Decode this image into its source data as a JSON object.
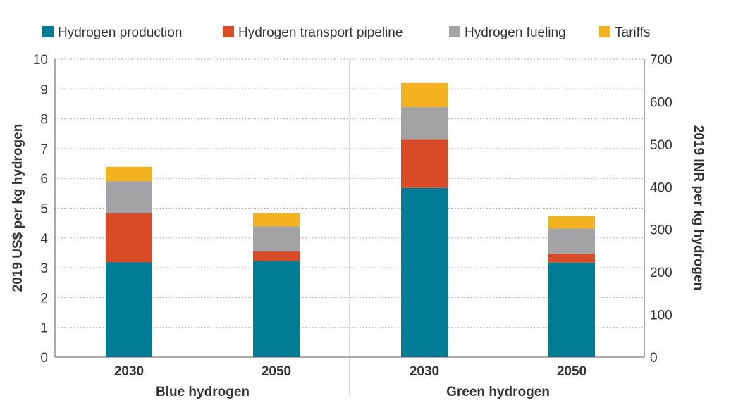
{
  "chart_data": {
    "type": "bar",
    "stacked": true,
    "groups": [
      {
        "label": "Blue hydrogen",
        "categories": [
          "2030",
          "2050"
        ]
      },
      {
        "label": "Green hydrogen",
        "categories": [
          "2030",
          "2050"
        ]
      }
    ],
    "series": [
      {
        "name": "Hydrogen production",
        "color": "#007d96",
        "values": [
          3.18,
          3.23,
          5.68,
          3.17
        ]
      },
      {
        "name": "Hydrogen transport pipeline",
        "color": "#d94b26",
        "values": [
          1.65,
          0.32,
          1.62,
          0.3
        ]
      },
      {
        "name": "Hydrogen fueling",
        "color": "#a3a3a5",
        "values": [
          1.07,
          0.84,
          1.09,
          0.85
        ]
      },
      {
        "name": "Tariffs",
        "color": "#f3b21f",
        "values": [
          0.49,
          0.44,
          0.81,
          0.42
        ]
      }
    ],
    "ylabel": "2019 US$ per kg hydrogen",
    "ylim": [
      0,
      10
    ],
    "yticks": [
      0,
      1,
      2,
      3,
      4,
      5,
      6,
      7,
      8,
      9,
      10
    ],
    "y2label": "2019 INR per kg hydrogen",
    "y2lim": [
      0,
      700
    ],
    "y2ticks": [
      0,
      100,
      200,
      300,
      400,
      500,
      600,
      700
    ],
    "grid": "horizontal dotted",
    "legend_position": "top"
  }
}
